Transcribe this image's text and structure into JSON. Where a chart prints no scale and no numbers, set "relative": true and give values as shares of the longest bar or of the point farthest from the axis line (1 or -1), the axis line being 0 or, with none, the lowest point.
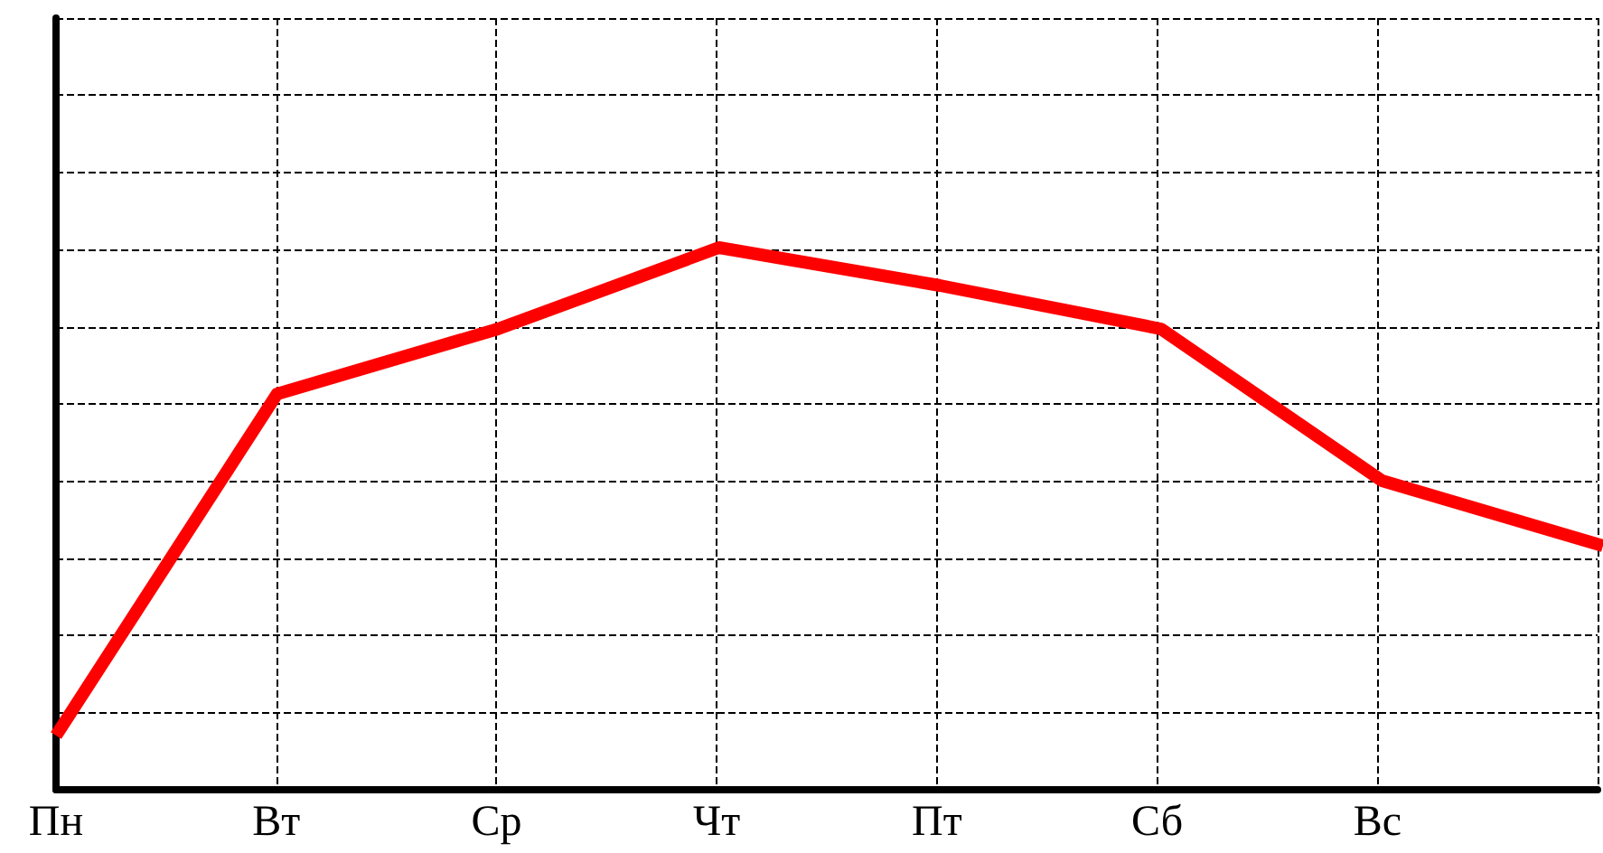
{
  "chart_data": {
    "type": "line",
    "relative": true,
    "categories": [
      "Пн",
      "Вт",
      "Ср",
      "Чт",
      "Пт",
      "Сб",
      "Вс",
      null
    ],
    "series": [
      {
        "color": "#ff0000",
        "values": [
          0.1,
          0.73,
          0.85,
          1,
          0.93,
          0.85,
          0.57,
          0.45
        ]
      }
    ],
    "grid": true,
    "marker": "none",
    "line_style": "solid"
  }
}
